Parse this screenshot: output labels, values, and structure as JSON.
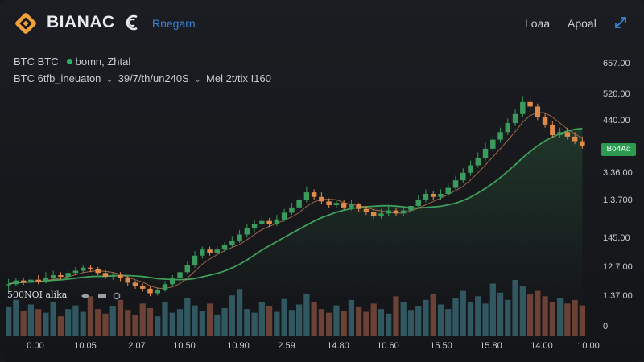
{
  "header": {
    "brand": "BIANAC",
    "nav_link": "Rnegarn",
    "menu": [
      "Loaa",
      "Apoal"
    ]
  },
  "info": {
    "pair": "BTC BTC",
    "status": "bomn, Zhtal",
    "line2_a": "BTC 6tfb_ineuaton",
    "line2_b": "39/7/th/un240S",
    "line2_c": "Mel 2t/tix I160"
  },
  "y_axis": [
    "657.00",
    "520.00",
    "440.00",
    "3.36.00",
    "1.3.700",
    "145.00",
    "12.7.00",
    "1.37.00",
    "0"
  ],
  "price_badge": "Bo4Ad",
  "x_axis": [
    "0.00",
    "10.05",
    "2.07",
    "10.50",
    "10.90",
    "2.59",
    "14.80",
    "10.60",
    "15.50",
    "15.80",
    "14.00",
    "10.00"
  ],
  "volume_label": "500NOI alika",
  "colors": {
    "up": "#3a9b5c",
    "down": "#e08a4a",
    "ma_green": "#3f9e5b",
    "ma_orange": "#d98a5a",
    "accent_blue": "#3b82d6",
    "logo_orange": "#f0a13a"
  },
  "chart_data": {
    "type": "candlestick",
    "candles": [
      [
        250,
        250,
        240,
        257
      ],
      [
        250,
        255,
        247,
        258
      ],
      [
        255,
        252,
        249,
        259
      ],
      [
        252,
        256,
        248,
        261
      ],
      [
        256,
        254,
        250,
        262
      ],
      [
        254,
        258,
        251,
        266
      ],
      [
        258,
        262,
        255,
        268
      ],
      [
        262,
        260,
        256,
        266
      ],
      [
        260,
        265,
        257,
        270
      ],
      [
        265,
        268,
        262,
        273
      ],
      [
        268,
        272,
        265,
        276
      ],
      [
        272,
        270,
        266,
        275
      ],
      [
        270,
        265,
        262,
        273
      ],
      [
        265,
        260,
        257,
        269
      ],
      [
        260,
        262,
        256,
        266
      ],
      [
        262,
        258,
        254,
        266
      ],
      [
        258,
        252,
        248,
        261
      ],
      [
        252,
        248,
        244,
        255
      ],
      [
        248,
        244,
        240,
        251
      ],
      [
        244,
        238,
        234,
        247
      ],
      [
        238,
        242,
        235,
        246
      ],
      [
        242,
        250,
        240,
        254
      ],
      [
        250,
        258,
        248,
        262
      ],
      [
        258,
        266,
        255,
        270
      ],
      [
        266,
        275,
        263,
        280
      ],
      [
        275,
        288,
        272,
        294
      ],
      [
        288,
        296,
        284,
        300
      ],
      [
        296,
        292,
        288,
        300
      ],
      [
        292,
        296,
        289,
        300
      ],
      [
        296,
        302,
        293,
        306
      ],
      [
        302,
        308,
        299,
        314
      ],
      [
        308,
        316,
        305,
        322
      ],
      [
        316,
        324,
        312,
        330
      ],
      [
        324,
        330,
        320,
        335
      ],
      [
        330,
        334,
        326,
        340
      ],
      [
        334,
        330,
        326,
        338
      ],
      [
        330,
        336,
        327,
        342
      ],
      [
        336,
        345,
        333,
        350
      ],
      [
        345,
        352,
        342,
        358
      ],
      [
        352,
        362,
        349,
        368
      ],
      [
        362,
        372,
        359,
        380
      ],
      [
        372,
        366,
        362,
        376
      ],
      [
        366,
        360,
        356,
        372
      ],
      [
        360,
        355,
        351,
        364
      ],
      [
        355,
        358,
        351,
        362
      ],
      [
        358,
        352,
        349,
        362
      ],
      [
        352,
        356,
        348,
        362
      ],
      [
        356,
        350,
        346,
        358
      ],
      [
        350,
        346,
        342,
        354
      ],
      [
        346,
        340,
        336,
        350
      ],
      [
        340,
        344,
        337,
        350
      ],
      [
        344,
        348,
        340,
        354
      ],
      [
        348,
        344,
        340,
        352
      ],
      [
        344,
        348,
        341,
        353
      ],
      [
        348,
        354,
        345,
        360
      ],
      [
        354,
        362,
        351,
        368
      ],
      [
        362,
        370,
        359,
        376
      ],
      [
        370,
        366,
        362,
        374
      ],
      [
        366,
        370,
        362,
        376
      ],
      [
        370,
        378,
        367,
        384
      ],
      [
        378,
        388,
        375,
        394
      ],
      [
        388,
        398,
        385,
        404
      ],
      [
        398,
        408,
        394,
        414
      ],
      [
        408,
        418,
        405,
        425
      ],
      [
        418,
        430,
        414,
        438
      ],
      [
        430,
        442,
        426,
        448
      ],
      [
        442,
        452,
        438,
        458
      ],
      [
        452,
        464,
        448,
        470
      ],
      [
        464,
        476,
        460,
        482
      ],
      [
        476,
        492,
        472,
        500
      ],
      [
        492,
        486,
        480,
        498
      ],
      [
        486,
        472,
        468,
        490
      ],
      [
        472,
        462,
        458,
        478
      ],
      [
        462,
        448,
        444,
        466
      ],
      [
        448,
        452,
        444,
        458
      ],
      [
        452,
        446,
        442,
        458
      ],
      [
        446,
        440,
        436,
        452
      ],
      [
        440,
        434,
        430,
        446
      ]
    ],
    "volumes": [
      32,
      40,
      28,
      35,
      30,
      26,
      38,
      22,
      30,
      34,
      27,
      44,
      30,
      25,
      33,
      40,
      29,
      24,
      36,
      31,
      22,
      38,
      26,
      30,
      42,
      34,
      28,
      36,
      24,
      31,
      45,
      52,
      30,
      26,
      38,
      33,
      27,
      41,
      29,
      35,
      47,
      38,
      30,
      26,
      34,
      28,
      40,
      32,
      27,
      36,
      30,
      25,
      44,
      38,
      29,
      33,
      40,
      46,
      35,
      30,
      42,
      50,
      38,
      44,
      36,
      58,
      48,
      40,
      62,
      55,
      46,
      50,
      44,
      38,
      42,
      36,
      40,
      34
    ],
    "ma_fast": "orange",
    "ma_slow": "green"
  }
}
